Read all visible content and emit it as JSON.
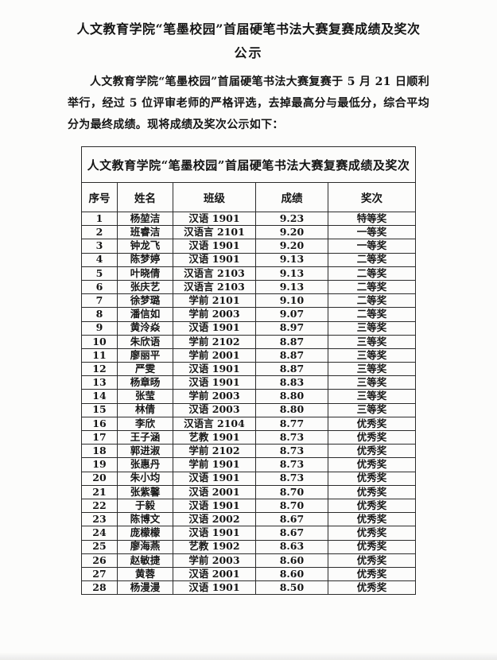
{
  "document": {
    "title_line1": "人文教育学院“笔墨校园”首届硬笔书法大赛复赛成绩及奖次",
    "title_line2": "公示",
    "paragraph": "人文教育学院“笔墨校园”首届硬笔书法大赛复赛于 5 月 21 日顺利举行，经过 5 位评审老师的严格评选，去掉最高分与最低分，综合平均分为最终成绩。现将成绩及奖次公示如下："
  },
  "table": {
    "caption": "人文教育学院“笔墨校园”首届硬笔书法大赛复赛成绩及奖次",
    "columns": [
      "序号",
      "姓名",
      "班级",
      "成绩",
      "奖次"
    ],
    "column_keys": [
      "index",
      "name",
      "class",
      "score",
      "award"
    ],
    "rows": [
      [
        "1",
        "杨堃洁",
        "汉语 1901",
        "9.23",
        "特等奖"
      ],
      [
        "2",
        "班睿洁",
        "汉语言 2101",
        "9.20",
        "一等奖"
      ],
      [
        "3",
        "钟龙飞",
        "汉语 1901",
        "9.20",
        "一等奖"
      ],
      [
        "4",
        "陈梦婷",
        "汉语 1901",
        "9.13",
        "二等奖"
      ],
      [
        "5",
        "叶晓倩",
        "汉语言 2103",
        "9.13",
        "二等奖"
      ],
      [
        "6",
        "张庆艺",
        "汉语言 2103",
        "9.13",
        "二等奖"
      ],
      [
        "7",
        "徐梦璐",
        "学前 2101",
        "9.10",
        "二等奖"
      ],
      [
        "8",
        "潘信如",
        "学前 2003",
        "9.07",
        "二等奖"
      ],
      [
        "9",
        "黄泠焱",
        "汉语 1901",
        "8.97",
        "三等奖"
      ],
      [
        "10",
        "朱欣语",
        "学前 2102",
        "8.87",
        "三等奖"
      ],
      [
        "11",
        "廖丽平",
        "学前 2001",
        "8.87",
        "三等奖"
      ],
      [
        "12",
        "严雯",
        "汉语 1901",
        "8.87",
        "三等奖"
      ],
      [
        "13",
        "杨章旸",
        "汉语 1901",
        "8.83",
        "三等奖"
      ],
      [
        "14",
        "张莹",
        "学前 2003",
        "8.80",
        "三等奖"
      ],
      [
        "15",
        "林倩",
        "汉语 2003",
        "8.80",
        "三等奖"
      ],
      [
        "16",
        "李欣",
        "汉语言 2104",
        "8.77",
        "优秀奖"
      ],
      [
        "17",
        "王子涵",
        "艺教 1901",
        "8.73",
        "优秀奖"
      ],
      [
        "18",
        "郭进淑",
        "学前 2102",
        "8.73",
        "优秀奖"
      ],
      [
        "19",
        "张惠丹",
        "学前 1901",
        "8.73",
        "优秀奖"
      ],
      [
        "20",
        "朱小均",
        "汉语 1901",
        "8.73",
        "优秀奖"
      ],
      [
        "21",
        "张紫馨",
        "汉语 2001",
        "8.70",
        "优秀奖"
      ],
      [
        "22",
        "于毅",
        "汉语 1901",
        "8.70",
        "优秀奖"
      ],
      [
        "23",
        "陈博文",
        "汉语 2002",
        "8.67",
        "优秀奖"
      ],
      [
        "24",
        "庞檬檬",
        "汉语 1901",
        "8.67",
        "优秀奖"
      ],
      [
        "25",
        "廖海燕",
        "艺教 1902",
        "8.63",
        "优秀奖"
      ],
      [
        "26",
        "赵敏捷",
        "学前 2003",
        "8.60",
        "优秀奖"
      ],
      [
        "27",
        "黄蓉",
        "汉语 2001",
        "8.60",
        "优秀奖"
      ],
      [
        "28",
        "杨漫漫",
        "汉语 1901",
        "8.50",
        "优秀奖"
      ]
    ]
  }
}
